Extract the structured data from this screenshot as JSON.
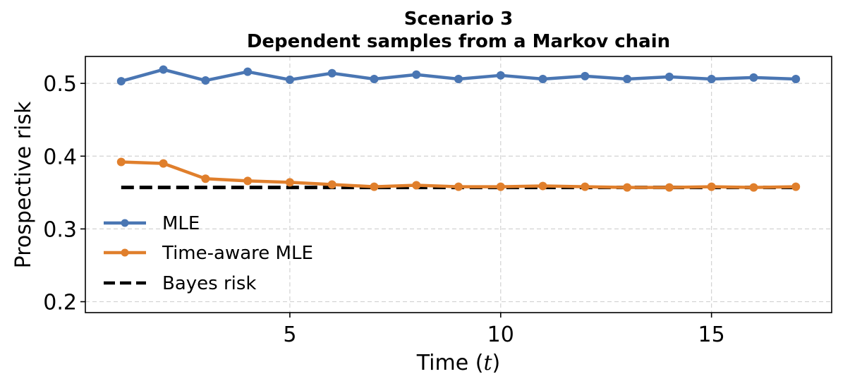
{
  "chart_data": {
    "type": "line",
    "title": "Scenario 3",
    "subtitle": "Dependent samples from a Markov chain",
    "xlabel": "Time (t)",
    "xlabel_prefix": "Time (",
    "xlabel_var": "t",
    "xlabel_suffix": ")",
    "ylabel": "Prospective risk",
    "x": [
      1,
      2,
      3,
      4,
      5,
      6,
      7,
      8,
      9,
      10,
      11,
      12,
      13,
      14,
      15,
      16,
      17
    ],
    "xlim": [
      0.15,
      17.85
    ],
    "ylim": [
      0.185,
      0.537
    ],
    "xticks": [
      5,
      10,
      15
    ],
    "yticks": [
      0.2,
      0.3,
      0.4,
      0.5
    ],
    "xtick_labels": [
      "5",
      "10",
      "15"
    ],
    "ytick_labels": [
      "0.2",
      "0.3",
      "0.4",
      "0.5"
    ],
    "grid": true,
    "legend_position": "center-left",
    "series": [
      {
        "name": "MLE",
        "color": "#4a76b3",
        "marker": "circle",
        "style": "solid",
        "values": [
          0.503,
          0.519,
          0.504,
          0.516,
          0.505,
          0.514,
          0.506,
          0.512,
          0.506,
          0.511,
          0.506,
          0.51,
          0.506,
          0.509,
          0.506,
          0.508,
          0.506
        ]
      },
      {
        "name": "Time-aware MLE",
        "color": "#e07f2c",
        "marker": "circle",
        "style": "solid",
        "values": [
          0.392,
          0.39,
          0.369,
          0.366,
          0.364,
          0.361,
          0.358,
          0.36,
          0.358,
          0.358,
          0.359,
          0.358,
          0.357,
          0.357,
          0.358,
          0.357,
          0.358
        ]
      },
      {
        "name": "Bayes risk",
        "color": "#000000",
        "marker": "none",
        "style": "dashed",
        "values": [
          0.357,
          0.357,
          0.357,
          0.357,
          0.357,
          0.357,
          0.357,
          0.357,
          0.357,
          0.357,
          0.357,
          0.357,
          0.357,
          0.357,
          0.357,
          0.357,
          0.357
        ]
      }
    ]
  }
}
